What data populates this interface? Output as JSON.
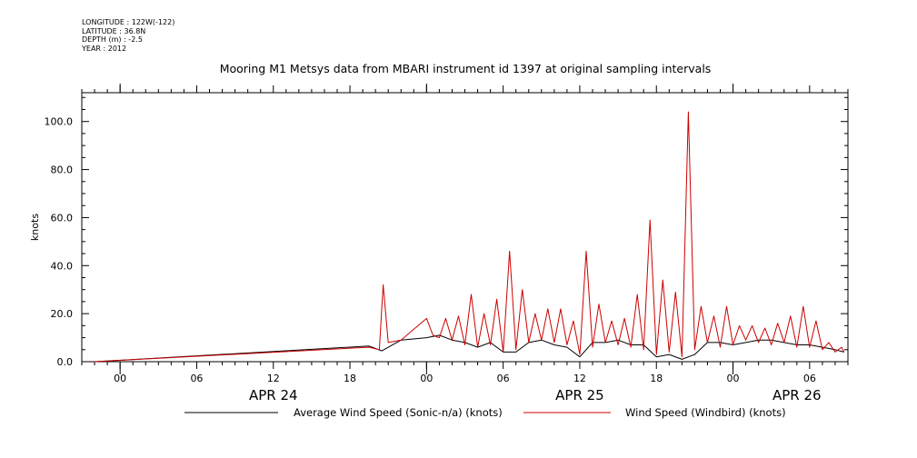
{
  "header": {
    "longitude": "LONGITUDE : 122W(-122)",
    "latitude": "LATITUDE : 36.8N",
    "depth": "DEPTH (m) : -2.5",
    "year": "YEAR : 2012"
  },
  "chart_data": {
    "type": "line",
    "title": "Mooring M1 Metsys data from MBARI instrument id 1397 at original sampling intervals",
    "ylabel": "knots",
    "xlabel": "",
    "ylim": [
      0,
      112
    ],
    "xlim_hours": [
      -3,
      57
    ],
    "y_ticks": [
      0,
      20,
      40,
      60,
      80,
      100
    ],
    "y_tick_labels": [
      "0.0",
      "20.0",
      "40.0",
      "60.0",
      "80.0",
      "100.0"
    ],
    "x_ticks": [
      0,
      6,
      12,
      18,
      24,
      30,
      36,
      42,
      48,
      54
    ],
    "x_tick_labels": [
      "00",
      "06",
      "12",
      "18",
      "00",
      "06",
      "12",
      "18",
      "00",
      "06"
    ],
    "day_labels": [
      {
        "label": "APR 24",
        "at_hour": 12
      },
      {
        "label": "APR 25",
        "at_hour": 36
      },
      {
        "label": "APR 26",
        "at_hour": 53
      }
    ],
    "grid": false,
    "legend_position": "bottom",
    "series": [
      {
        "name": "Average Wind Speed (Sonic-n/a) (knots)",
        "color": "#000000",
        "x": [
          -2,
          19.5,
          20.5,
          22,
          24,
          25,
          26,
          27,
          28,
          29,
          30,
          31,
          32,
          33,
          34,
          35,
          36,
          37,
          38,
          39,
          40,
          41,
          42,
          43,
          44,
          45,
          46,
          47,
          48,
          49,
          50,
          51,
          52,
          53,
          54,
          55,
          56,
          56.7
        ],
        "y": [
          0,
          6.5,
          4.5,
          9,
          10,
          11,
          9,
          8,
          6,
          8,
          4,
          4,
          8,
          9,
          7,
          6,
          2,
          8,
          8,
          9,
          7,
          7,
          2,
          3,
          1,
          3,
          8,
          8,
          7,
          8,
          9,
          9,
          8,
          7,
          7,
          6,
          5,
          4
        ]
      },
      {
        "name": "Wind Speed (Windbird) (knots)",
        "color": "#cc0000",
        "x": [
          -2,
          19.5,
          20.3,
          20.6,
          21,
          22,
          24,
          24.5,
          25,
          25.5,
          26,
          26.5,
          27,
          27.5,
          28,
          28.5,
          29,
          29.5,
          30,
          30.5,
          31,
          31.5,
          32,
          32.5,
          33,
          33.5,
          34,
          34.5,
          35,
          35.5,
          36,
          36.5,
          37,
          37.5,
          38,
          38.5,
          39,
          39.5,
          40,
          40.5,
          41,
          41.5,
          42,
          42.5,
          43,
          43.5,
          44,
          44.5,
          45,
          45.5,
          46,
          46.5,
          47,
          47.5,
          48,
          48.5,
          49,
          49.5,
          50,
          50.5,
          51,
          51.5,
          52,
          52.5,
          53,
          53.5,
          54,
          54.5,
          55,
          55.5,
          56,
          56.5,
          56.7
        ],
        "y": [
          0,
          6,
          5,
          32,
          8,
          9,
          18,
          11,
          10,
          18,
          9,
          19,
          7,
          28,
          6,
          20,
          7,
          26,
          4,
          46,
          5,
          30,
          8,
          20,
          9,
          22,
          8,
          22,
          7,
          17,
          3,
          46,
          6,
          24,
          8,
          17,
          7,
          18,
          6,
          28,
          5,
          59,
          3,
          34,
          4,
          29,
          2,
          104,
          5,
          23,
          8,
          19,
          6,
          23,
          7,
          15,
          9,
          15,
          8,
          14,
          7,
          16,
          8,
          19,
          6,
          23,
          6,
          17,
          5,
          8,
          4,
          6,
          4
        ]
      }
    ]
  }
}
